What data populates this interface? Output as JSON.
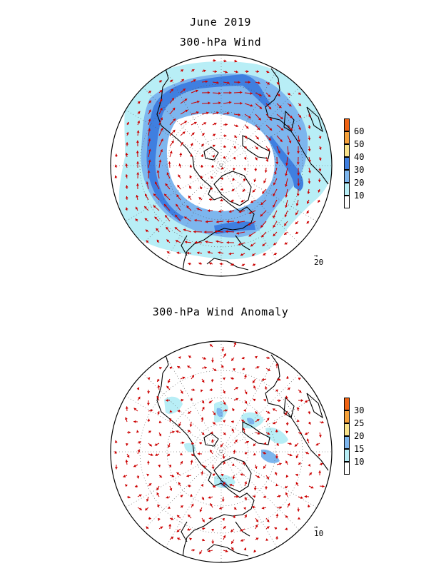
{
  "header": {
    "date": "June 2019",
    "wind_title": "300-hPa Wind",
    "anomaly_title": "300-hPa Wind Anomaly"
  },
  "colors": {
    "vector": "#cc0000",
    "coast": "#000000",
    "grid": "#555555",
    "level_10_20": "#b8eef6",
    "level_20_30": "#7db6ee",
    "level_30_40": "#3f7fe0",
    "level_40_50": "#f9e28a",
    "level_50_60": "#f7a23a",
    "level_60_plus": "#f06414"
  },
  "colorbars": {
    "wind": {
      "labels": [
        "60",
        "50",
        "40",
        "30",
        "20",
        "10"
      ],
      "colors": [
        "#f06414",
        "#f7a23a",
        "#f9e28a",
        "#3f7fe0",
        "#7db6ee",
        "#b8eef6",
        "#ffffff"
      ]
    },
    "anomaly": {
      "labels": [
        "30",
        "25",
        "20",
        "15",
        "10"
      ],
      "colors": [
        "#f06414",
        "#f7a23a",
        "#f9e28a",
        "#7db6ee",
        "#b8eef6",
        "#ffffff"
      ]
    }
  },
  "reference_vectors": {
    "wind": "20",
    "anomaly": "10"
  }
}
